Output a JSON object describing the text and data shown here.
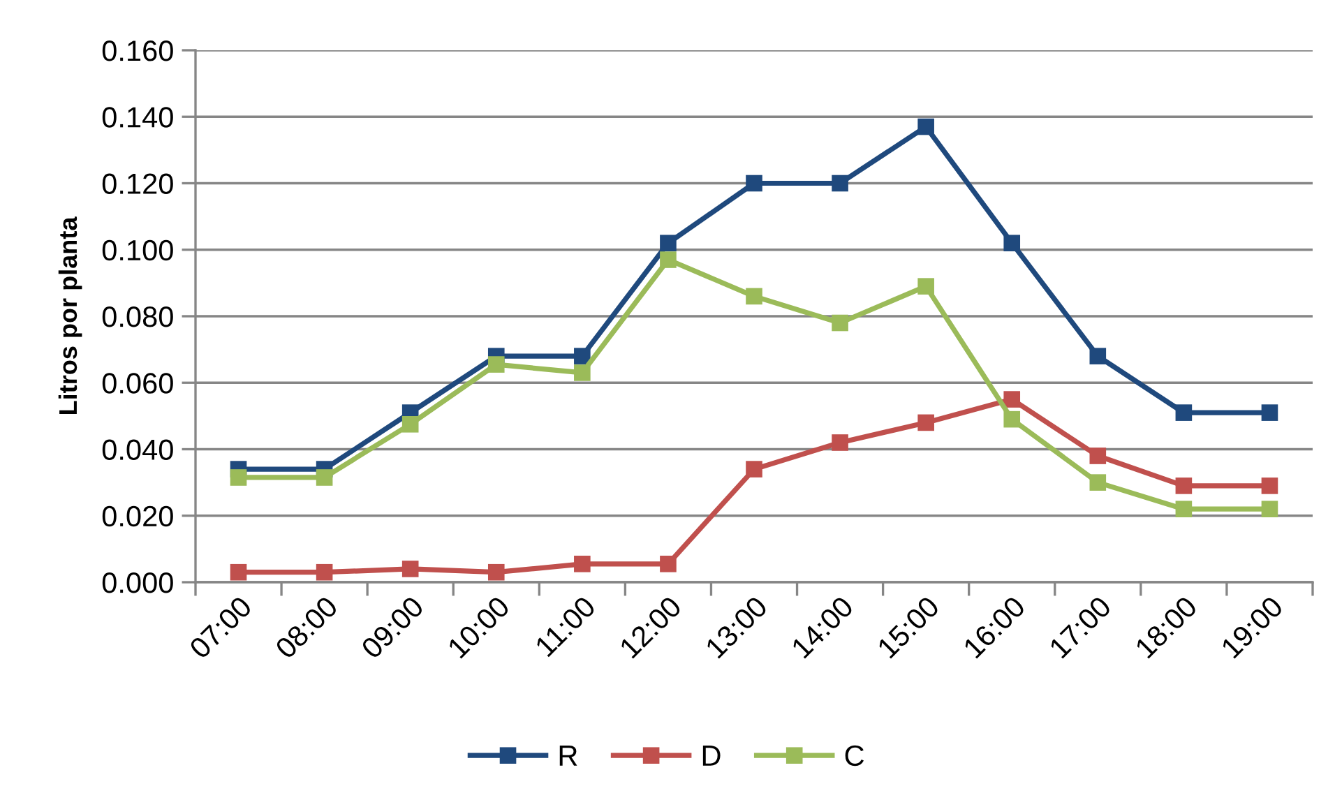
{
  "chart_data": {
    "type": "line",
    "ylabel": "Litros por planta",
    "categories": [
      "07:00",
      "08:00",
      "09:00",
      "10:00",
      "11:00",
      "12:00",
      "13:00",
      "14:00",
      "15:00",
      "16:00",
      "17:00",
      "18:00",
      "19:00"
    ],
    "series": [
      {
        "name": "R",
        "color": "#1f497d",
        "values": [
          0.034,
          0.034,
          0.051,
          0.068,
          0.068,
          0.102,
          0.12,
          0.12,
          0.137,
          0.102,
          0.068,
          0.051,
          0.051
        ]
      },
      {
        "name": "D",
        "color": "#c0504d",
        "values": [
          0.003,
          0.003,
          0.004,
          0.003,
          0.0055,
          0.0055,
          0.034,
          0.042,
          0.048,
          0.055,
          0.038,
          0.029,
          0.029
        ]
      },
      {
        "name": "C",
        "color": "#9bbb59",
        "values": [
          0.0315,
          0.0315,
          0.0475,
          0.0655,
          0.063,
          0.097,
          0.086,
          0.078,
          0.089,
          0.049,
          0.03,
          0.022,
          0.022
        ]
      }
    ],
    "ylim": [
      0,
      0.16
    ],
    "yticks": [
      {
        "value": 0,
        "label": "0.000"
      },
      {
        "value": 0.02,
        "label": "0.020"
      },
      {
        "value": 0.04,
        "label": "0.040"
      },
      {
        "value": 0.06,
        "label": "0.060"
      },
      {
        "value": 0.08,
        "label": "0.080"
      },
      {
        "value": 0.1,
        "label": "0.100"
      },
      {
        "value": 0.12,
        "label": "0.120"
      },
      {
        "value": 0.14,
        "label": "0.140"
      },
      {
        "value": 0.16,
        "label": "0.160"
      }
    ],
    "grid": "y",
    "legend": "bottom",
    "marker": "square",
    "line_style": "solid"
  }
}
